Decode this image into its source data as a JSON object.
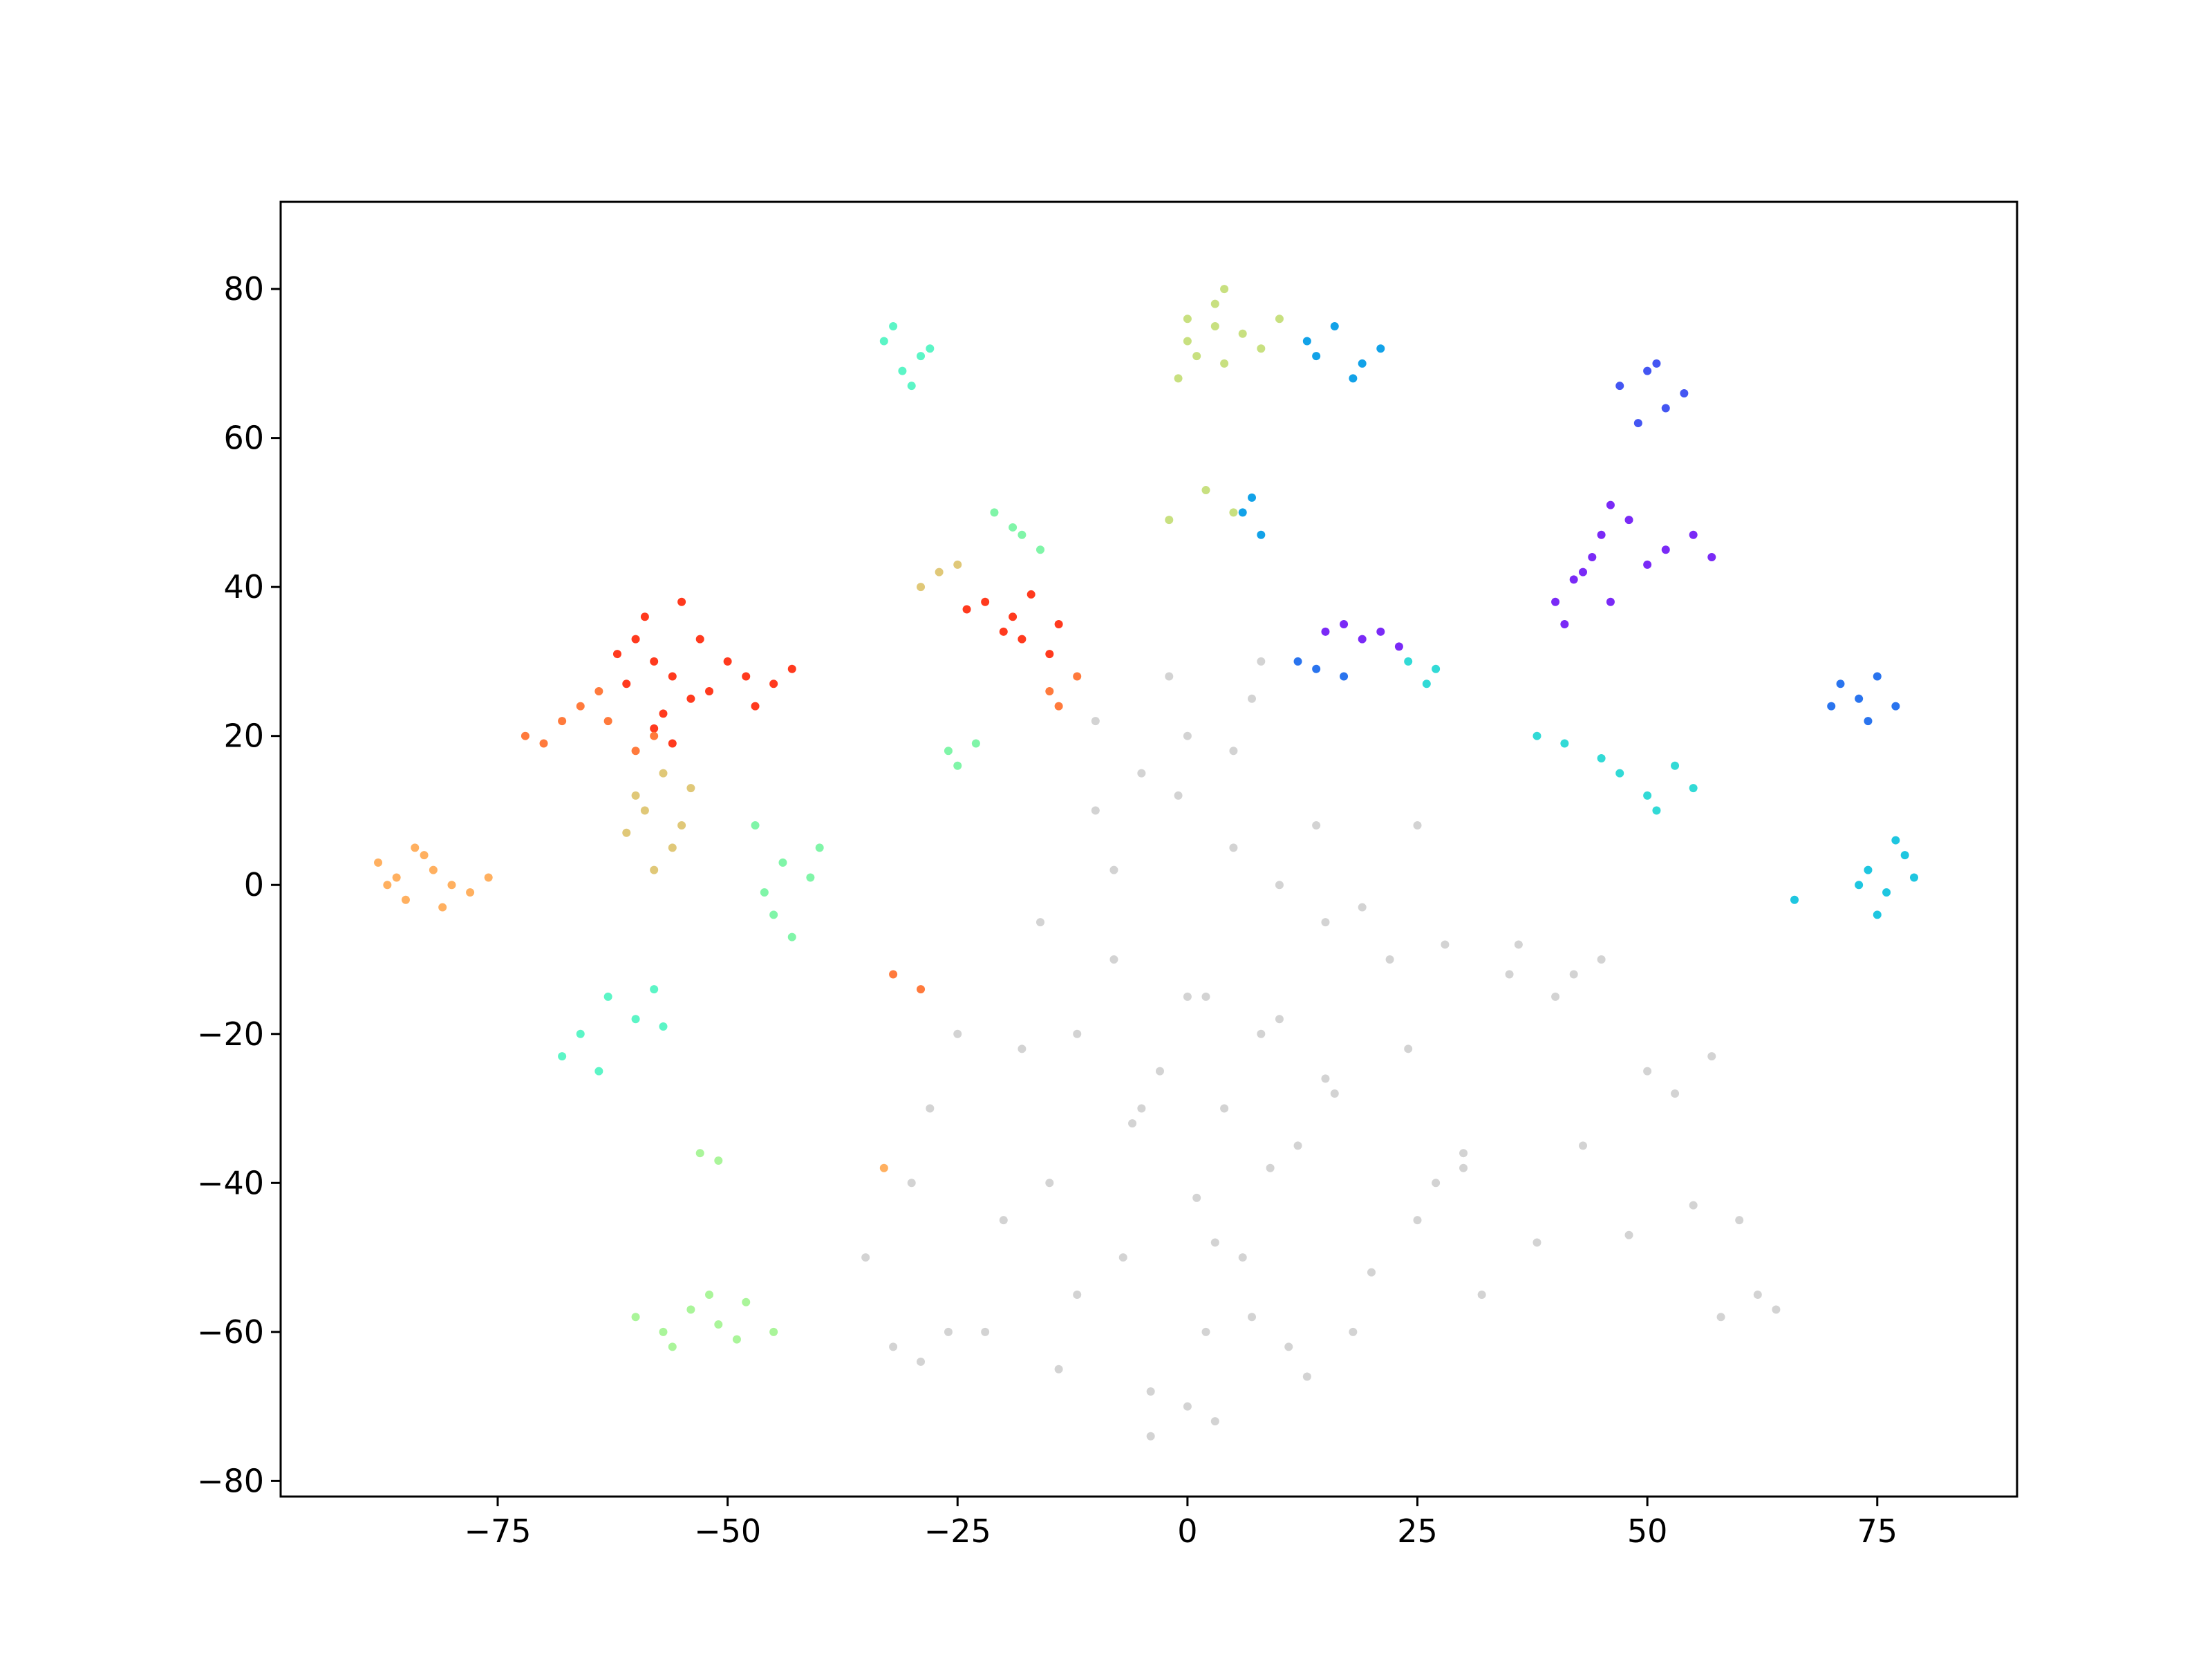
{
  "chart_data": {
    "type": "scatter",
    "xlim": [
      -98.6,
      90.2
    ],
    "ylim": [
      -82.1,
      91.7
    ],
    "xticks": [
      {
        "value": -75,
        "label": "−75"
      },
      {
        "value": -50,
        "label": "−50"
      },
      {
        "value": -25,
        "label": "−25"
      },
      0,
      25,
      50,
      75
    ],
    "yticks": [
      {
        "value": -80,
        "label": "−80"
      },
      {
        "value": -60,
        "label": "−60"
      },
      {
        "value": -40,
        "label": "−40"
      },
      {
        "value": -20,
        "label": "−20"
      },
      0,
      20,
      40,
      60,
      80
    ],
    "grid": false,
    "series": [
      {
        "color": "#d3d3d3",
        "x": [
          -10,
          -5,
          0,
          5,
          10,
          15,
          -8,
          2,
          8,
          -3,
          4,
          12,
          -15,
          -20,
          -25,
          -12,
          6,
          18,
          22,
          28,
          35,
          40,
          45,
          -30,
          -35,
          -28,
          -18,
          -6,
          1,
          9,
          16,
          25,
          32,
          -22,
          -14,
          -4,
          3,
          11,
          20,
          30,
          38,
          43,
          -16,
          -8,
          -1,
          7,
          14,
          24,
          50,
          53,
          57,
          60,
          55,
          48,
          62,
          64,
          58,
          42,
          36,
          27,
          -32,
          -29,
          -26,
          0,
          -4,
          13,
          19,
          7,
          -10,
          -2,
          5,
          10,
          15,
          -5,
          0,
          3,
          30,
          25,
          -12,
          -7,
          2,
          8
        ],
        "y": [
          10,
          15,
          20,
          5,
          0,
          -5,
          -10,
          -15,
          -20,
          -25,
          -30,
          -35,
          -40,
          -45,
          -20,
          -55,
          -50,
          -60,
          -10,
          -8,
          -12,
          -15,
          -10,
          -40,
          -50,
          -30,
          -22,
          -32,
          -42,
          -38,
          -28,
          -45,
          -55,
          -60,
          -65,
          -68,
          -72,
          -62,
          -52,
          -38,
          -48,
          -35,
          -5,
          2,
          12,
          25,
          8,
          -22,
          -25,
          -28,
          -23,
          -45,
          -43,
          -47,
          -55,
          -57,
          -58,
          -12,
          -8,
          -40,
          -62,
          -64,
          -60,
          -70,
          -74,
          -66,
          -3,
          -58,
          22,
          28,
          18,
          -18,
          -26,
          -30,
          -15,
          -48,
          -36,
          8,
          -20,
          -50,
          -60,
          30
        ]
      },
      {
        "color": "#ff3a1e",
        "x": [
          -60,
          -58,
          -56,
          -54,
          -57,
          -62,
          -59,
          -55,
          -52,
          -48,
          -45,
          -47,
          -50,
          -43,
          -58,
          -61,
          -53,
          -56,
          -22,
          -19,
          -17,
          -14,
          -20,
          -24,
          -18,
          -15
        ],
        "y": [
          33,
          30,
          28,
          25,
          23,
          31,
          36,
          38,
          26,
          28,
          27,
          24,
          30,
          29,
          21,
          27,
          33,
          19,
          38,
          36,
          39,
          35,
          34,
          37,
          33,
          31
        ]
      },
      {
        "color": "#ff7a3c",
        "x": [
          -63,
          -66,
          -70,
          -72,
          -60,
          -64,
          -68,
          -58,
          -15,
          -12,
          -14,
          -32,
          -29
        ],
        "y": [
          22,
          24,
          19,
          20,
          18,
          26,
          22,
          20,
          26,
          28,
          24,
          -12,
          -14
        ]
      },
      {
        "color": "#ffb060",
        "x": [
          -88,
          -86,
          -84,
          -82,
          -80,
          -85,
          -83,
          -87,
          -78,
          -76,
          -81,
          -33
        ],
        "y": [
          3,
          1,
          5,
          2,
          0,
          -2,
          4,
          0,
          -1,
          1,
          -3,
          -38
        ]
      },
      {
        "color": "#e0c878",
        "x": [
          -57,
          -59,
          -55,
          -60,
          -56,
          -58,
          -54,
          -61,
          -27,
          -29,
          -25
        ],
        "y": [
          15,
          10,
          8,
          12,
          5,
          2,
          13,
          7,
          42,
          40,
          43
        ]
      },
      {
        "color": "#c8e080",
        "x": [
          0,
          3,
          6,
          8,
          10,
          4,
          -1,
          1,
          2,
          5,
          -2,
          0,
          3,
          4
        ],
        "y": [
          76,
          78,
          74,
          72,
          76,
          70,
          68,
          71,
          53,
          50,
          49,
          73,
          75,
          80
        ]
      },
      {
        "color": "#aaf59a",
        "x": [
          -60,
          -57,
          -54,
          -51,
          -48,
          -45,
          -56,
          -52,
          -49,
          -53,
          -51
        ],
        "y": [
          -58,
          -60,
          -57,
          -59,
          -56,
          -60,
          -62,
          -55,
          -61,
          -36,
          -37
        ]
      },
      {
        "color": "#80f5a8",
        "x": [
          -47,
          -44,
          -41,
          -45,
          -43,
          -40,
          -46,
          -21,
          -18,
          -16,
          -19,
          -26,
          -23,
          -25
        ],
        "y": [
          8,
          3,
          1,
          -4,
          -7,
          5,
          -1,
          50,
          47,
          45,
          48,
          18,
          19,
          16
        ]
      },
      {
        "color": "#5cf5c6",
        "x": [
          -33,
          -31,
          -29,
          -30,
          -32,
          -28,
          -66,
          -63,
          -60,
          -68,
          -64,
          -58,
          -57
        ],
        "y": [
          73,
          69,
          71,
          67,
          75,
          72,
          -20,
          -15,
          -18,
          -23,
          -25,
          -14,
          -19
        ]
      },
      {
        "color": "#32dad6",
        "x": [
          47,
          50,
          53,
          45,
          51,
          55,
          38,
          41,
          24,
          26,
          27
        ],
        "y": [
          15,
          12,
          16,
          17,
          10,
          13,
          20,
          19,
          30,
          27,
          29
        ]
      },
      {
        "color": "#1ec6e0",
        "x": [
          74,
          76,
          78,
          73,
          77,
          75,
          79,
          66
        ],
        "y": [
          2,
          -1,
          4,
          0,
          6,
          -4,
          1,
          -2
        ]
      },
      {
        "color": "#12a2e8",
        "x": [
          13,
          16,
          19,
          21,
          14,
          18,
          7,
          8,
          6
        ],
        "y": [
          73,
          75,
          70,
          72,
          71,
          68,
          52,
          47,
          50
        ]
      },
      {
        "color": "#2a74ee",
        "x": [
          71,
          73,
          75,
          70,
          74,
          77,
          14,
          17,
          12
        ],
        "y": [
          27,
          25,
          28,
          24,
          22,
          24,
          29,
          28,
          30
        ]
      },
      {
        "color": "#4456f2",
        "x": [
          47,
          50,
          52,
          54,
          49,
          51
        ],
        "y": [
          67,
          69,
          64,
          66,
          62,
          70
        ]
      },
      {
        "color": "#7a2af6",
        "x": [
          40,
          42,
          44,
          46,
          41,
          43,
          45,
          52,
          55,
          57,
          50,
          46,
          48,
          15,
          17,
          19,
          21,
          23
        ],
        "y": [
          38,
          41,
          44,
          38,
          35,
          42,
          47,
          45,
          47,
          44,
          43,
          51,
          49,
          34,
          35,
          33,
          34,
          32
        ]
      }
    ]
  }
}
